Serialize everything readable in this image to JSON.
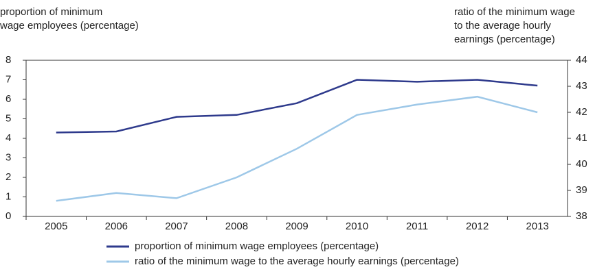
{
  "chart_data": {
    "type": "line",
    "y_label": [
      "proportion of minimum",
      "wage employees (percentage)"
    ],
    "y2_label": [
      "ratio of the minimum wage",
      "to the average hourly",
      "earnings (percentage)"
    ],
    "categories": [
      "2005",
      "2006",
      "2007",
      "2008",
      "2009",
      "2010",
      "2011",
      "2012",
      "2013"
    ],
    "series": [
      {
        "name": "proportion of minimum wage employees (percentage)",
        "color": "#2e3a8c",
        "values": [
          4.3,
          4.35,
          5.1,
          5.2,
          5.8,
          7.0,
          6.9,
          7.0,
          6.7
        ]
      },
      {
        "name": "ratio of the minimum wage to the average hourly earnings (percentage)",
        "color": "#9ec8e8",
        "axis": "y2",
        "values": [
          38.6,
          38.9,
          38.7,
          39.5,
          40.6,
          41.9,
          42.3,
          42.6,
          42.0
        ]
      }
    ],
    "ylim": [
      0,
      8
    ],
    "yticks": [
      0,
      1,
      2,
      3,
      4,
      5,
      6,
      7,
      8
    ],
    "y2lim": [
      38,
      44
    ],
    "y2ticks": [
      38,
      39,
      40,
      41,
      42,
      43,
      44
    ]
  }
}
